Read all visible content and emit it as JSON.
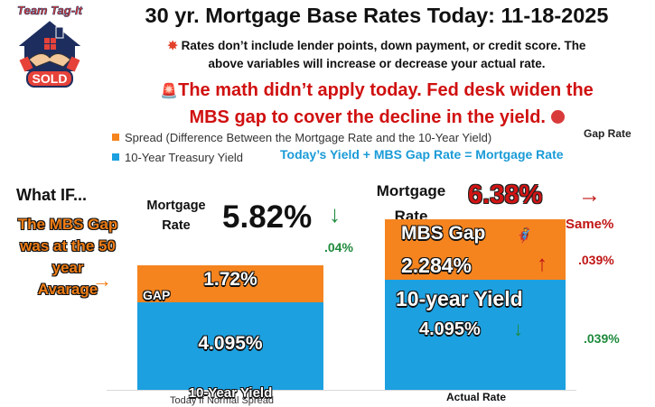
{
  "logo": {
    "top_text": "Team Tag-It",
    "badge_text": "SOLD"
  },
  "title": "30 yr. Mortgage Base Rates Today: 11-18-2025",
  "note_line1": "Rates don’t include lender points, down payment, or credit score. The",
  "note_line2": "above variables will increase or decrease your actual rate.",
  "alert_line1": "The math didn’t apply today. Fed desk widen the",
  "alert_line2": "MBS gap to cover the decline in the yield.",
  "gap_rate_label": "Gap Rate",
  "formula": "Today’s  Yield +  MBS Gap Rate = Mortgage Rate",
  "what_if": "What IF...",
  "mbs_note": [
    "The MBS Gap",
    "was at the 50",
    "year",
    "Avarage"
  ],
  "left_panel": {
    "rate_label_line1": "Mortgage",
    "rate_label_line2": "Rate",
    "rate": "5.82%",
    "change": ".04%"
  },
  "right_panel": {
    "rate_label_line1": "Mortgage",
    "rate_label_line2": "Rate",
    "rate": "6.38%",
    "same": "Same%",
    "gap_change": ".039%",
    "yield_change": ".039%"
  },
  "bar_text": {
    "left_gap_tag": "GAP",
    "left_spread": "1.72%",
    "left_yield": "4.095%",
    "left_yield_name": "10-Year Yield",
    "right_spread_name": "MBS Gap",
    "right_spread": "2.284%",
    "right_yield_name": "10-year Yield",
    "right_yield": "4.095%"
  },
  "colors": {
    "spread": "#f5841f",
    "yield": "#1ca0e0",
    "up": "#c01515",
    "down": "#1e8a3c"
  },
  "chart_data": {
    "type": "bar",
    "stacked": true,
    "categories": [
      "Today if Normal Spread",
      "Actual Rate"
    ],
    "series": [
      {
        "name": "10-Year Treasury Yield",
        "values": [
          4.095,
          4.095
        ]
      },
      {
        "name": "Spread (Difference Between the Mortgage Rate and the 10-Year Yield)",
        "values": [
          1.72,
          2.284
        ]
      }
    ],
    "ylim": [
      0,
      6.4
    ],
    "legend": "top-left",
    "grid": false
  }
}
